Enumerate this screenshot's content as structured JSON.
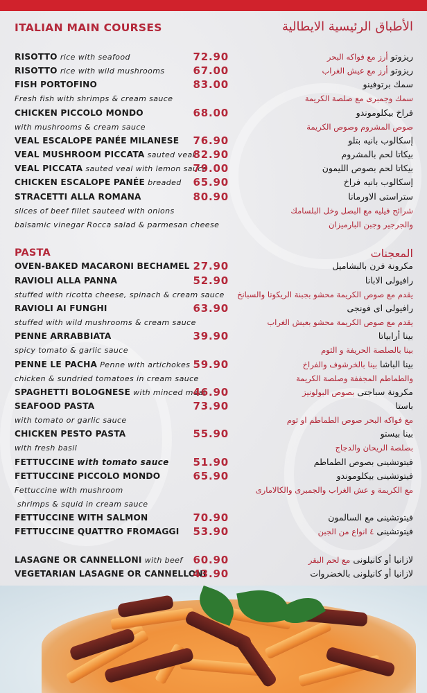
{
  "header": {
    "title_en": "ITALIAN MAIN COURSES",
    "title_ar": "الأطباق الرئيسية الايطالية"
  },
  "colors": {
    "accent": "#b4283a",
    "top_bar": "#d0222c",
    "text": "#1c1c1c"
  },
  "rows": [
    {
      "en_name": "RISOTTO",
      "en_desc": "rice with seafood",
      "price": "72.90",
      "ar_name": "ريزوتو",
      "ar_desc": "أرز مع فواكه البحر"
    },
    {
      "en_name": "RISOTTO",
      "en_desc": "rice with wild mushrooms",
      "price": "67.00",
      "ar_name": "ريزوتو",
      "ar_desc": "أرز مع عيش الغراب"
    },
    {
      "en_name": "FISH PORTOFINO",
      "price": "83.00",
      "ar_name": "سمك برتوفينو"
    },
    {
      "en_desc": "Fresh fish with shrimps & cream sauce",
      "ar_desc": "سمك وجمبرى مع صلصة الكريمة"
    },
    {
      "en_name": "CHICKEN PICCOLO MONDO",
      "price": "68.00",
      "ar_name": "فراخ بيكلوموندو"
    },
    {
      "en_desc": "with mushrooms & cream sauce",
      "ar_desc": "صوص المشروم وصوص الكريمة"
    },
    {
      "en_name": "VEAL ESCALOPE PANÉE MILANESE",
      "price": "76.90",
      "ar_name": "إسكالوب بانيه بتلو"
    },
    {
      "en_name": "VEAL MUSHROOM PICCATA",
      "en_desc": "sauted veal",
      "price": "82.90",
      "ar_name": "بيكاتا لحم بالمشروم"
    },
    {
      "en_name": "VEAL PICCATA",
      "en_desc": "sauted veal with lemon sauce",
      "price": "79.00",
      "ar_name": "بيكاتا لحم بصوص الليمون"
    },
    {
      "en_name": "CHICKEN ESCALOPE PANÉE",
      "en_desc": "breaded",
      "price": "65.90",
      "ar_name": "إسكالوب بانيه فراخ"
    },
    {
      "en_name": "STRACETTI ALLA ROMANA",
      "price": "80.90",
      "ar_name": "ستراستى الاورمانا"
    },
    {
      "en_desc": "slices of beef fillet sauteed with onions",
      "ar_desc": "شرائح فيليه مع البصل وخل البلسامك"
    },
    {
      "en_desc": "balsamic vinegar Rocca salad & parmesan cheese",
      "ar_desc": "والجرجير وجبن البارميزان"
    },
    {},
    {
      "section_en": "PASTA",
      "section_ar": "المعجنات"
    },
    {
      "en_name": "OVEN-BAKED MACARONI BECHAMEL",
      "price": "27.90",
      "ar_name": "مكرونة فرن بالبشاميل"
    },
    {
      "en_name": "RAVIOLI ALLA PANNA",
      "price": "52.90",
      "ar_name": "رافيولى الابانا"
    },
    {
      "en_desc": "stuffed with ricotta cheese, spinach & cream sauce",
      "ar_desc": "يقدم مع صوص الكريمة محشو بجبنة الريكوتا والسبانخ"
    },
    {
      "en_name": "RAVIOLI AI FUNGHI",
      "price": "63.90",
      "ar_name": "رافيولى اى فونجى"
    },
    {
      "en_desc": "stuffed with wild mushrooms & cream sauce",
      "ar_desc": "يقدم مع صوص الكريمة محشو بعيش الغراب"
    },
    {
      "en_name": "PENNE ARRABBIATA",
      "price": "39.90",
      "ar_name": "بينا أرابياتا"
    },
    {
      "en_desc": "spicy tomato & garlic sauce",
      "ar_desc": "بينا بالصلصة الحريفة و الثوم"
    },
    {
      "en_name": "PENNE LE PACHA",
      "en_desc": "Penne with artichokes",
      "price": "59.90",
      "ar_name": "بينا الباشا",
      "ar_desc": "بينا بالخرشوف والفراخ"
    },
    {
      "en_desc": "chicken & sundried tomatoes in cream sauce",
      "ar_desc": "والطماطم المجففة وصلصة الكريمة"
    },
    {
      "en_name": "SPAGHETTI BOLOGNESE",
      "en_desc": "with minced meat",
      "price": "46.90",
      "ar_name": "مكرونة سباجتى",
      "ar_desc": "بصوص البولونيز"
    },
    {
      "en_name": "SEAFOOD PASTA",
      "price": "73.90",
      "ar_name": "باستا"
    },
    {
      "en_desc": "with tomato or garlic sauce",
      "ar_desc": "مع فواكه البحر  صوص الطماطم او ثوم"
    },
    {
      "en_name": "CHICKEN PESTO PASTA",
      "price": "55.90",
      "ar_name": "بينا بيستو"
    },
    {
      "en_desc": "with fresh basil",
      "ar_desc": "بصلصة الريحان والدجاج"
    },
    {
      "en_name": "FETTUCCINE",
      "en_desc": "with tomato sauce",
      "price": "51.90",
      "ar_name": "فيتوتشينى بصوص الطماطم"
    },
    {
      "en_name": "FETTUCCINE PICCOLO MONDO",
      "price": "65.90",
      "ar_name": "فيتوتشينى بيكلوموندو"
    },
    {
      "en_desc": "Fettuccine with mushroom",
      "ar_desc": "مع الكريمة و عش الغراب والجمبرى والكالامارى"
    },
    {
      "en_desc": " shrimps & squid in cream sauce"
    },
    {
      "en_name": "FETTUCCINE WITH SALMON",
      "price": "70.90",
      "ar_name": "فيتوتشينى مع السالمون"
    },
    {
      "en_name": "FETTUCCINE QUATTRO FROMAGGI",
      "price": "53.90",
      "ar_name": "فيتوتشينى",
      "ar_desc": "٤ انواع من الجبن"
    },
    {},
    {
      "en_name": "LASAGNE OR CANNELLONI",
      "en_desc": "with beef",
      "price": "60.90",
      "ar_name": "لازانيا أو كانيلونى",
      "ar_desc": "مع لحم البقر"
    },
    {
      "en_name": "VEGETARIAN LASAGNE OR CANNELLONI",
      "price": "43.90",
      "ar_name": "لازانيا أو كانيلونى بالخضروات"
    }
  ]
}
